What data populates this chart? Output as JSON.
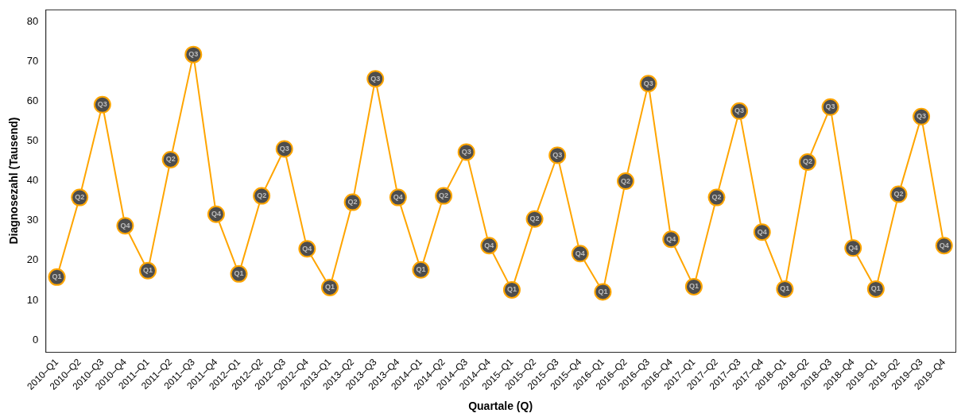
{
  "chart_data": {
    "type": "line",
    "xlabel": "Quartale (Q)",
    "ylabel": "Diagnosezahl (Tausend)",
    "categories": [
      "2010–Q1",
      "2010–Q2",
      "2010–Q3",
      "2010–Q4",
      "2011–Q1",
      "2011–Q2",
      "2011–Q3",
      "2011–Q4",
      "2012–Q1",
      "2012–Q2",
      "2012–Q3",
      "2012–Q4",
      "2013–Q1",
      "2013–Q2",
      "2013–Q3",
      "2013–Q4",
      "2014–Q1",
      "2014–Q2",
      "2014–Q3",
      "2014–Q4",
      "2015–Q1",
      "2015–Q2",
      "2015–Q3",
      "2015–Q4",
      "2016–Q1",
      "2016–Q2",
      "2016–Q3",
      "2016–Q4",
      "2017–Q1",
      "2017–Q2",
      "2017–Q3",
      "2017–Q4",
      "2018–Q1",
      "2018–Q2",
      "2018–Q3",
      "2018–Q4",
      "2019–Q1",
      "2019–Q2",
      "2019–Q3",
      "2019–Q4"
    ],
    "series": [
      {
        "color": "#ffa500",
        "values": [
          15.8,
          35.8,
          59.1,
          28.7,
          17.4,
          45.3,
          71.7,
          31.6,
          16.6,
          36.2,
          48.0,
          22.9,
          13.2,
          34.6,
          65.6,
          35.8,
          17.6,
          36.2,
          47.2,
          23.7,
          12.6,
          30.4,
          46.4,
          21.7,
          12.1,
          39.9,
          64.4,
          25.3,
          13.4,
          35.8,
          57.5,
          27.1,
          12.8,
          44.7,
          58.5,
          23.1,
          12.8,
          36.6,
          56.1,
          23.7
        ],
        "value_labels": [
          "Q1",
          "Q2",
          "Q3",
          "Q4",
          "Q1",
          "Q2",
          "Q3",
          "Q4",
          "Q1",
          "Q2",
          "Q3",
          "Q4",
          "Q1",
          "Q2",
          "Q3",
          "Q4",
          "Q1",
          "Q2",
          "Q3",
          "Q4",
          "Q1",
          "Q2",
          "Q3",
          "Q4",
          "Q1",
          "Q2",
          "Q3",
          "Q4",
          "Q1",
          "Q2",
          "Q3",
          "Q4",
          "Q1",
          "Q2",
          "Q3",
          "Q4",
          "Q1",
          "Q2",
          "Q3",
          "Q4"
        ]
      }
    ],
    "ylim": [
      -3,
      83
    ],
    "yticks": [
      0,
      10,
      20,
      30,
      40,
      50,
      60,
      70,
      80
    ],
    "grid": false,
    "legend": false,
    "marker": "circle",
    "line_style": "solid"
  }
}
